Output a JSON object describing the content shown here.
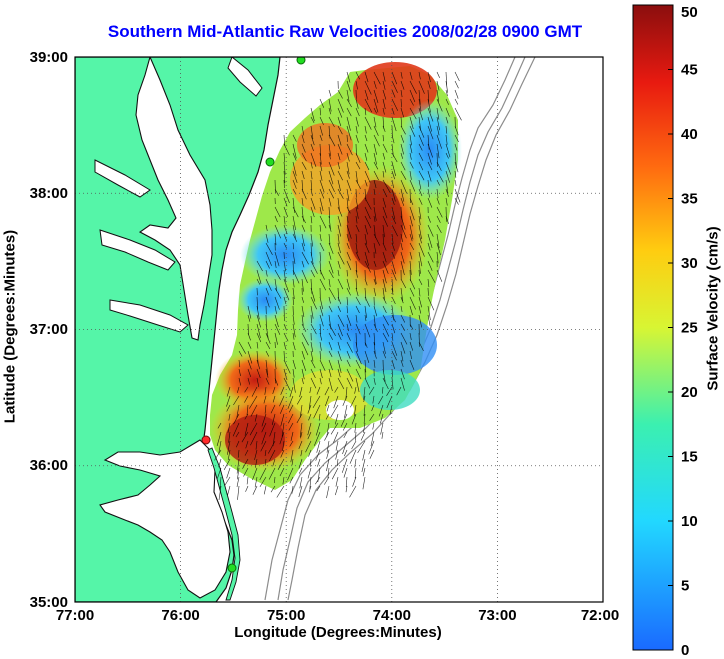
{
  "title": "Southern Mid-Atlantic Raw Velocities 2008/02/28 0900 GMT",
  "xlabel": "Longitude (Degrees:Minutes)",
  "ylabel": "Latitude (Degrees:Minutes)",
  "colorbar": {
    "label": "Surface Velocity (cm/s)",
    "min": 0,
    "max": 50,
    "ticks": [
      "0",
      "5",
      "10",
      "15",
      "20",
      "25",
      "30",
      "35",
      "40",
      "45",
      "50"
    ]
  },
  "axes": {
    "x_ticks": [
      "77:00",
      "76:00",
      "75:00",
      "74:00",
      "73:00",
      "72:00"
    ],
    "y_ticks": [
      "39:00",
      "38:00",
      "37:00",
      "36:00",
      "35:00"
    ],
    "x_range_deg": [
      -77,
      -72
    ],
    "y_range_deg": [
      35,
      39
    ],
    "grid": "dotted"
  },
  "colors": {
    "land": "#55f5a8",
    "water": "#ffffff",
    "title": "#0000ff",
    "coastline": "#000000",
    "bathymetry": "#8c8c8c",
    "station": "#22dd22"
  }
}
